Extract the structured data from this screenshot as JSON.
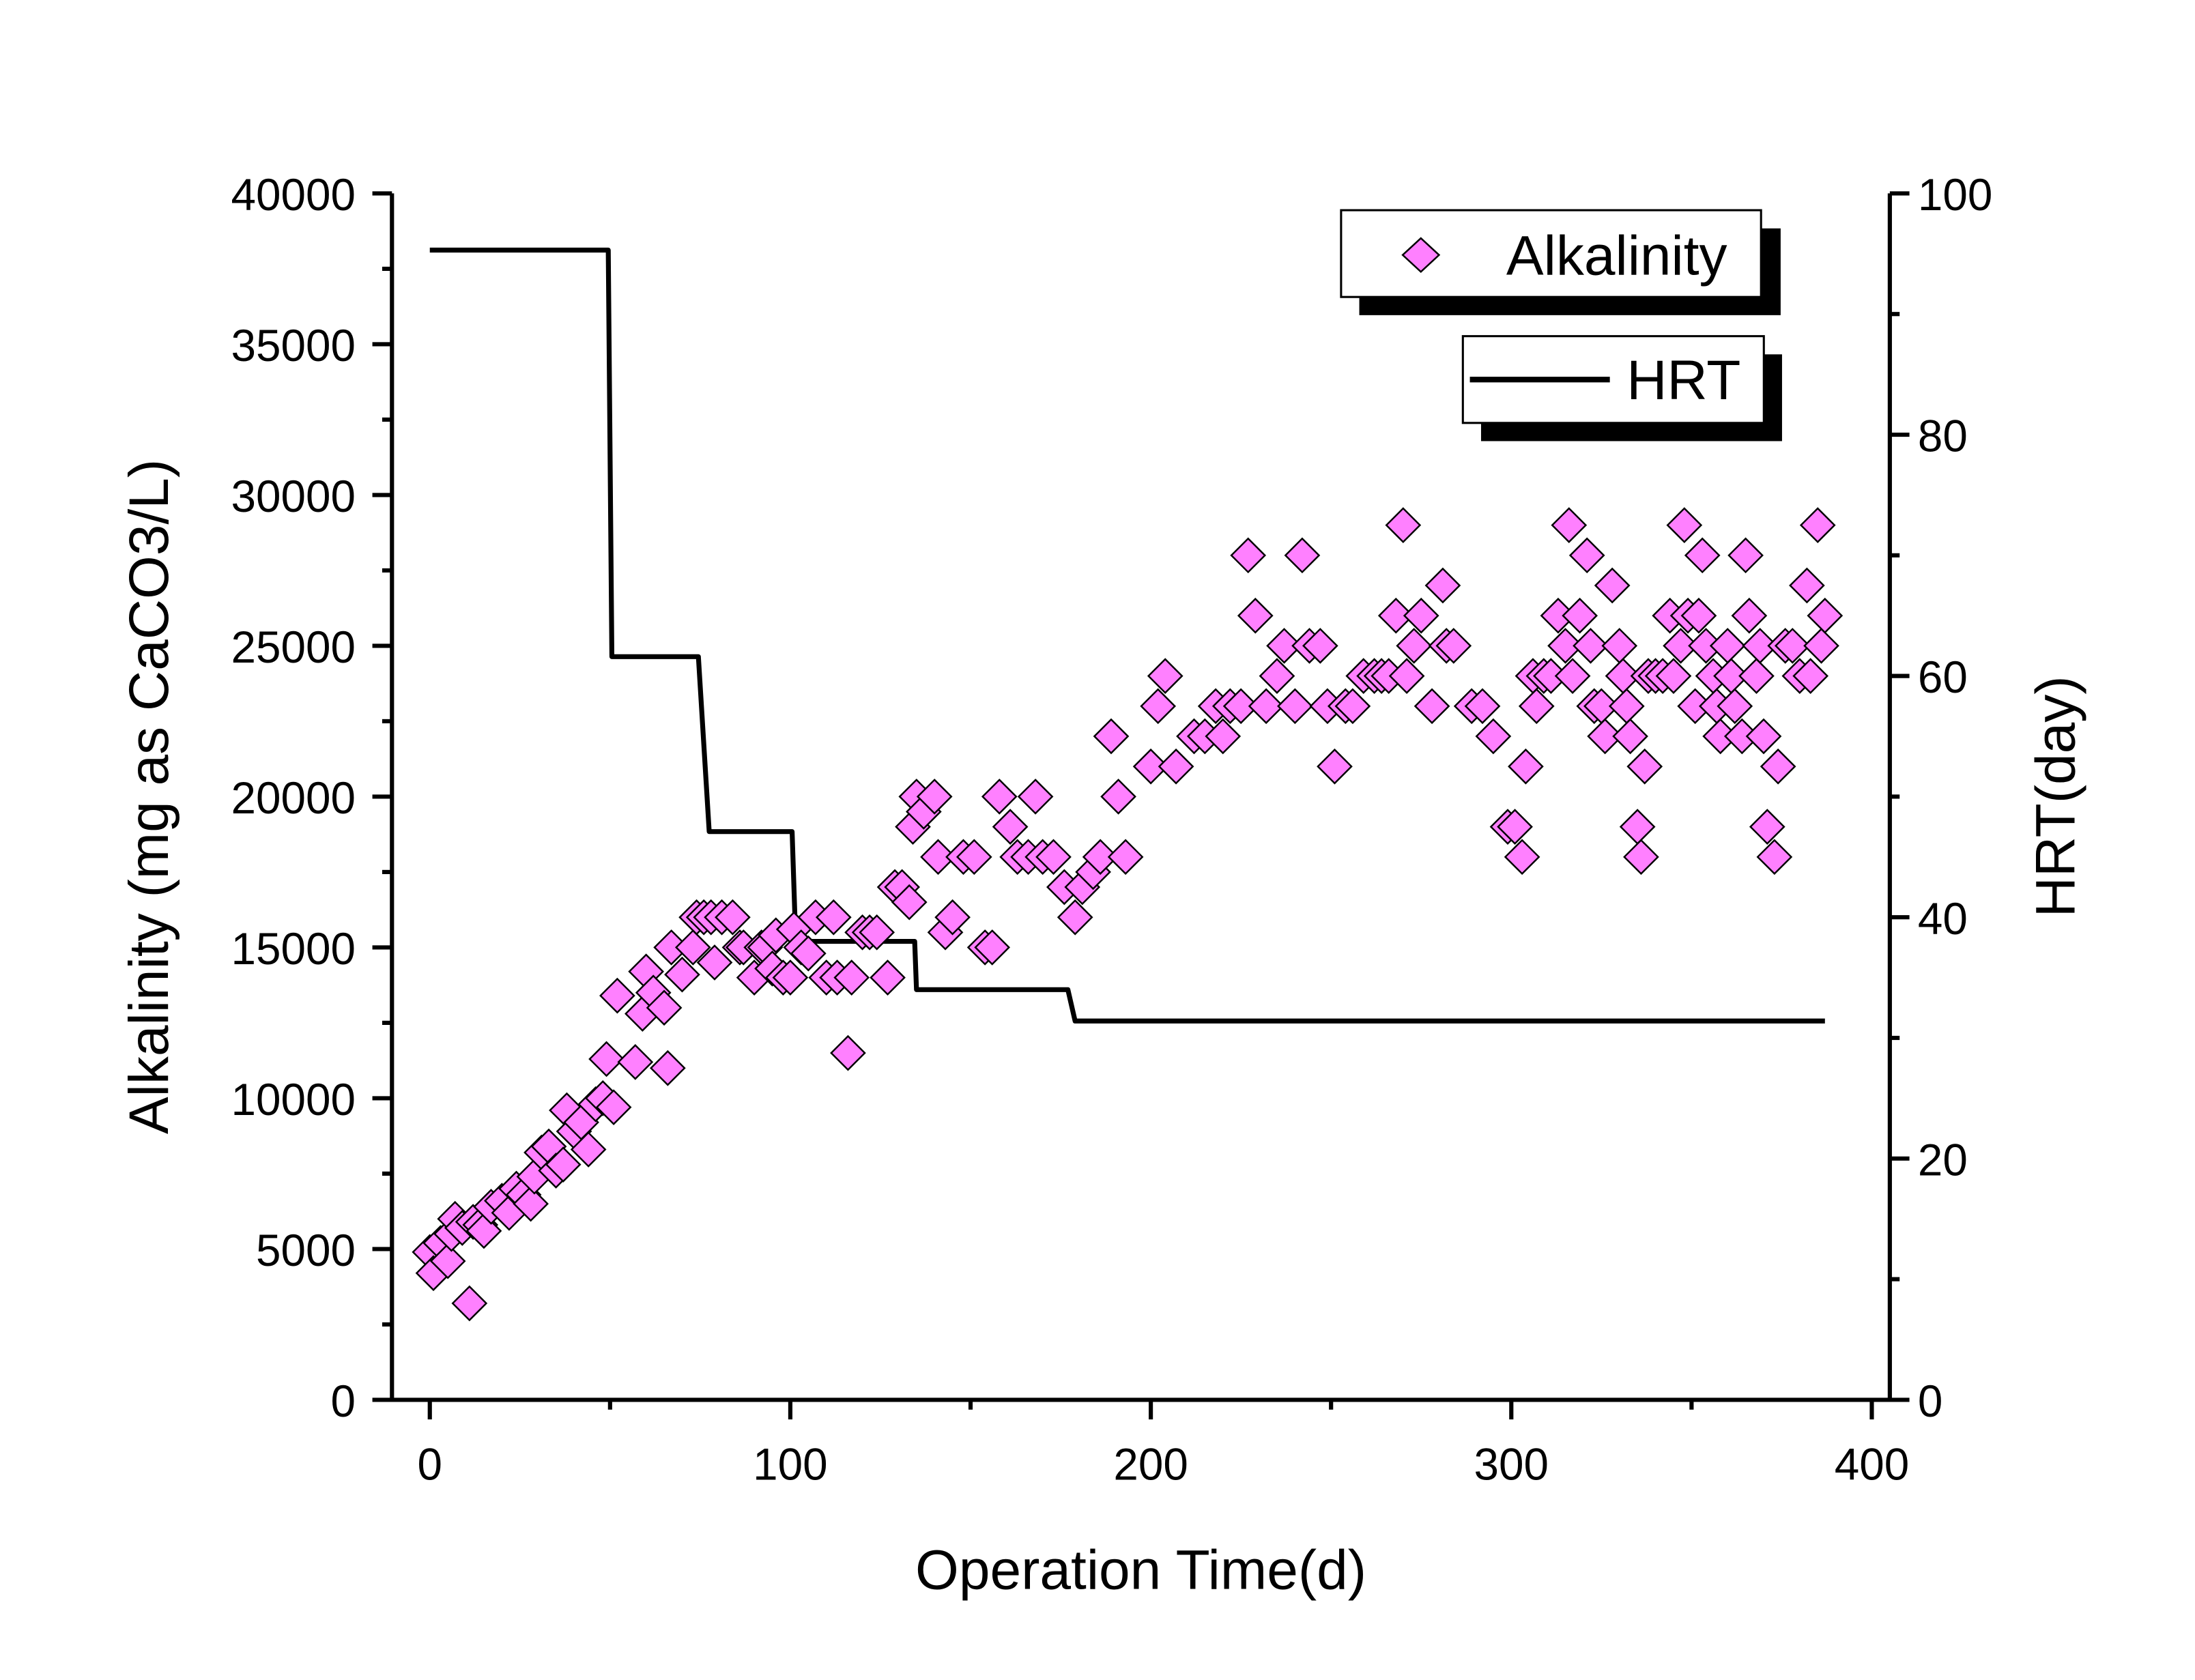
{
  "chart_data": {
    "type": "scatter+line",
    "xlabel": "Operation Time(d)",
    "ylabel": "Alkalinity (mg as CaCO3/L)",
    "y2label": "HRT(day)",
    "xlim": [
      -10.5,
      405
    ],
    "ylim": [
      0,
      40000
    ],
    "y2lim": [
      0,
      100
    ],
    "xticks": [
      0,
      100,
      200,
      300,
      400
    ],
    "yticks": [
      0,
      5000,
      10000,
      15000,
      20000,
      25000,
      30000,
      35000,
      40000
    ],
    "y2ticks": [
      0,
      20,
      40,
      60,
      80,
      100
    ],
    "grid": false,
    "legend_position": "top-right",
    "colors": {
      "alkalinity_fill": "#ff80ff",
      "marker_edge": "#000000",
      "hrt_line": "#000000"
    },
    "series": [
      {
        "name": "Alkalinity",
        "axis": "left",
        "marker": "diamond",
        "points": [
          [
            0,
            4900
          ],
          [
            1,
            4200
          ],
          [
            3,
            5200
          ],
          [
            5,
            4600
          ],
          [
            6,
            5500
          ],
          [
            7,
            6000
          ],
          [
            9,
            5700
          ],
          [
            11,
            3200
          ],
          [
            12,
            5900
          ],
          [
            14,
            5800
          ],
          [
            15,
            5600
          ],
          [
            17,
            6400
          ],
          [
            20,
            6600
          ],
          [
            22,
            6200
          ],
          [
            24,
            7000
          ],
          [
            26,
            6800
          ],
          [
            28,
            6500
          ],
          [
            29,
            7400
          ],
          [
            31,
            8200
          ],
          [
            33,
            8400
          ],
          [
            35,
            7600
          ],
          [
            37,
            7800
          ],
          [
            38,
            9600
          ],
          [
            40,
            8900
          ],
          [
            42,
            9200
          ],
          [
            44,
            8300
          ],
          [
            46,
            9800
          ],
          [
            48,
            10000
          ],
          [
            49,
            11300
          ],
          [
            51,
            9700
          ],
          [
            52,
            13400
          ],
          [
            57,
            11200
          ],
          [
            59,
            12800
          ],
          [
            60,
            14200
          ],
          [
            62,
            13500
          ],
          [
            65,
            13000
          ],
          [
            66,
            11000
          ],
          [
            67,
            15000
          ],
          [
            70,
            14100
          ],
          [
            73,
            15000
          ],
          [
            74,
            16000
          ],
          [
            76,
            16000
          ],
          [
            78,
            16000
          ],
          [
            79,
            14500
          ],
          [
            81,
            16000
          ],
          [
            84,
            16000
          ],
          [
            86,
            15000
          ],
          [
            87,
            15000
          ],
          [
            90,
            14000
          ],
          [
            92,
            15000
          ],
          [
            93,
            15000
          ],
          [
            95,
            14300
          ],
          [
            96,
            15400
          ],
          [
            98,
            14000
          ],
          [
            100,
            14000
          ],
          [
            101,
            15600
          ],
          [
            103,
            15000
          ],
          [
            105,
            14800
          ],
          [
            107,
            16000
          ],
          [
            110,
            14000
          ],
          [
            112,
            16000
          ],
          [
            113,
            14000
          ],
          [
            116,
            11500
          ],
          [
            117,
            14000
          ],
          [
            120,
            15500
          ],
          [
            122,
            15500
          ],
          [
            124,
            15500
          ],
          [
            127,
            14000
          ],
          [
            129,
            17000
          ],
          [
            131,
            17000
          ],
          [
            133,
            16500
          ],
          [
            134,
            19000
          ],
          [
            135,
            20000
          ],
          [
            137,
            19500
          ],
          [
            140,
            20000
          ],
          [
            141,
            18000
          ],
          [
            143,
            15500
          ],
          [
            145,
            16000
          ],
          [
            148,
            18000
          ],
          [
            151,
            18000
          ],
          [
            154,
            15000
          ],
          [
            156,
            15000
          ],
          [
            158,
            20000
          ],
          [
            161,
            19000
          ],
          [
            163,
            18000
          ],
          [
            166,
            18000
          ],
          [
            168,
            20000
          ],
          [
            170,
            18000
          ],
          [
            173,
            18000
          ],
          [
            176,
            17000
          ],
          [
            179,
            16000
          ],
          [
            181,
            17000
          ],
          [
            184,
            17500
          ],
          [
            186,
            18000
          ],
          [
            189,
            22000
          ],
          [
            191,
            20000
          ],
          [
            193,
            18000
          ],
          [
            200,
            21000
          ],
          [
            202,
            23000
          ],
          [
            204,
            24000
          ],
          [
            207,
            21000
          ],
          [
            212,
            22000
          ],
          [
            215,
            22000
          ],
          [
            218,
            23000
          ],
          [
            220,
            22000
          ],
          [
            222,
            23000
          ],
          [
            225,
            23000
          ],
          [
            227,
            28000
          ],
          [
            229,
            26000
          ],
          [
            232,
            23000
          ],
          [
            235,
            24000
          ],
          [
            237,
            25000
          ],
          [
            240,
            23000
          ],
          [
            242,
            28000
          ],
          [
            244,
            25000
          ],
          [
            247,
            25000
          ],
          [
            249,
            23000
          ],
          [
            251,
            21000
          ],
          [
            254,
            23000
          ],
          [
            256,
            23000
          ],
          [
            259,
            24000
          ],
          [
            262,
            24000
          ],
          [
            264,
            24000
          ],
          [
            266,
            24000
          ],
          [
            268,
            26000
          ],
          [
            270,
            29000
          ],
          [
            271,
            24000
          ],
          [
            273,
            25000
          ],
          [
            275,
            26000
          ],
          [
            278,
            23000
          ],
          [
            281,
            27000
          ],
          [
            282,
            25000
          ],
          [
            284,
            25000
          ],
          [
            289,
            23000
          ],
          [
            292,
            23000
          ],
          [
            295,
            22000
          ],
          [
            299,
            19000
          ],
          [
            301,
            19000
          ],
          [
            303,
            18000
          ],
          [
            304,
            21000
          ],
          [
            306,
            24000
          ],
          [
            307,
            23000
          ],
          [
            309,
            24000
          ],
          [
            311,
            24000
          ],
          [
            313,
            26000
          ],
          [
            315,
            25000
          ],
          [
            316,
            29000
          ],
          [
            317,
            24000
          ],
          [
            319,
            26000
          ],
          [
            321,
            28000
          ],
          [
            322,
            25000
          ],
          [
            323,
            23000
          ],
          [
            325,
            23000
          ],
          [
            326,
            22000
          ],
          [
            328,
            27000
          ],
          [
            330,
            25000
          ],
          [
            331,
            24000
          ],
          [
            332,
            23000
          ],
          [
            333,
            22000
          ],
          [
            335,
            19000
          ],
          [
            336,
            18000
          ],
          [
            337,
            21000
          ],
          [
            338,
            24000
          ],
          [
            340,
            24000
          ],
          [
            342,
            24000
          ],
          [
            344,
            26000
          ],
          [
            345,
            24000
          ],
          [
            347,
            25000
          ],
          [
            348,
            29000
          ],
          [
            349,
            26000
          ],
          [
            351,
            23000
          ],
          [
            352,
            26000
          ],
          [
            353,
            28000
          ],
          [
            354,
            25000
          ],
          [
            356,
            24000
          ],
          [
            357,
            23000
          ],
          [
            358,
            22000
          ],
          [
            360,
            25000
          ],
          [
            361,
            24000
          ],
          [
            362,
            23000
          ],
          [
            364,
            22000
          ],
          [
            365,
            28000
          ],
          [
            366,
            26000
          ],
          [
            368,
            24000
          ],
          [
            369,
            25000
          ],
          [
            370,
            22000
          ],
          [
            371,
            19000
          ],
          [
            373,
            18000
          ],
          [
            374,
            21000
          ],
          [
            376,
            25000
          ],
          [
            378,
            25000
          ],
          [
            380,
            24000
          ],
          [
            382,
            27000
          ],
          [
            383,
            24000
          ],
          [
            385,
            29000
          ],
          [
            386,
            25000
          ],
          [
            387,
            26000
          ]
        ]
      },
      {
        "name": "HRT",
        "axis": "right",
        "style": "step-line",
        "points": [
          [
            0,
            95.3
          ],
          [
            49.5,
            95.3
          ],
          [
            50.5,
            61.6
          ],
          [
            74.5,
            61.6
          ],
          [
            77.5,
            47.1
          ],
          [
            100.5,
            47.1
          ],
          [
            101.5,
            38
          ],
          [
            134.5,
            38
          ],
          [
            135,
            34
          ],
          [
            177,
            34
          ],
          [
            179,
            31.4
          ],
          [
            387,
            31.4
          ]
        ]
      }
    ]
  }
}
